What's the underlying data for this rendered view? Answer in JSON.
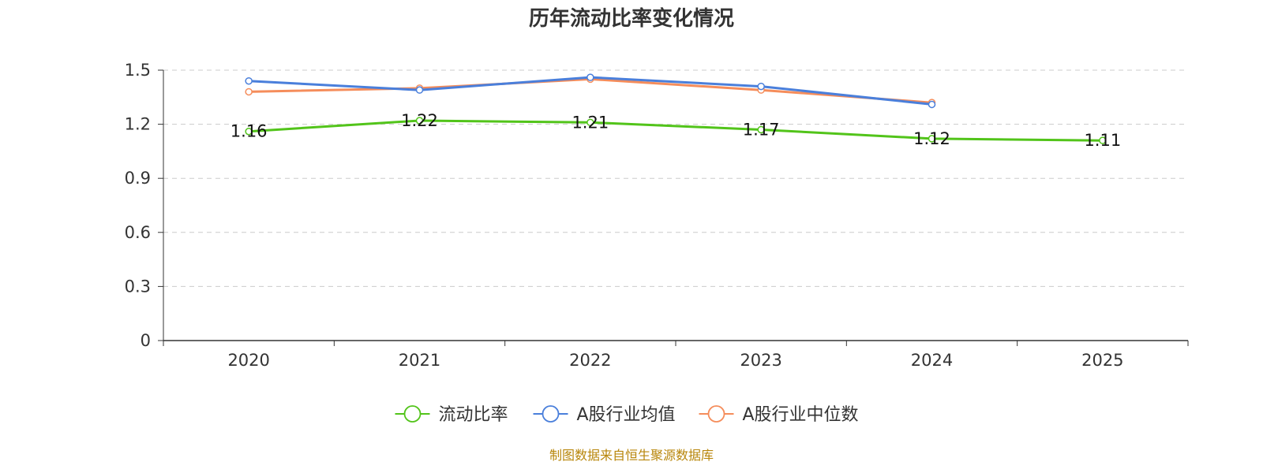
{
  "chart_data": {
    "type": "line",
    "title": "历年流动比率变化情况",
    "categories": [
      "2020",
      "2021",
      "2022",
      "2023",
      "2024",
      "2025"
    ],
    "ylim": [
      0,
      1.5
    ],
    "yticks": [
      "0",
      "0.3",
      "0.6",
      "0.9",
      "1.2",
      "1.5"
    ],
    "grid": true,
    "legend_position": "bottom",
    "series": [
      {
        "name": "流动比率",
        "color": "#52c41a",
        "values": [
          1.16,
          1.22,
          1.21,
          1.17,
          1.12,
          1.11
        ],
        "labels": [
          "1.16",
          "1.22",
          "1.21",
          "1.17",
          "1.12",
          "1.11"
        ]
      },
      {
        "name": "A股行业均值",
        "color": "#4a7fdb",
        "values": [
          1.44,
          1.39,
          1.46,
          1.41,
          1.31,
          null
        ]
      },
      {
        "name": "A股行业中位数",
        "color": "#f58d5b",
        "values": [
          1.38,
          1.4,
          1.45,
          1.39,
          1.32,
          null
        ]
      }
    ],
    "source": "制图数据来自恒生聚源数据库"
  }
}
